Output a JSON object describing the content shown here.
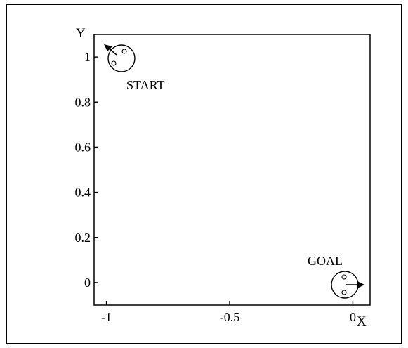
{
  "figure": {
    "start_label": "START",
    "goal_label": "GOAL",
    "background": "#ffffff",
    "stroke": "#000000"
  },
  "chart_data": {
    "type": "scatter",
    "x_axis_name": "X",
    "y_axis_name": "Y",
    "xlim": [
      -1.05,
      0.07
    ],
    "ylim": [
      -0.1,
      1.1
    ],
    "xticks": [
      -1,
      -0.5,
      0
    ],
    "xtick_labels": [
      "-1",
      "-0.5",
      "0"
    ],
    "yticks": [
      0,
      0.2,
      0.4,
      0.6,
      0.8,
      1
    ],
    "ytick_labels": [
      "0",
      "0.2",
      "0.4",
      "0.6",
      "0.8",
      "1"
    ],
    "grid": false,
    "robots": [
      {
        "label": "START",
        "x": -1.0,
        "y": 1.0,
        "heading_deg": 135
      },
      {
        "label": "GOAL",
        "x": 0.0,
        "y": 0.0,
        "heading_deg": 0
      }
    ]
  }
}
